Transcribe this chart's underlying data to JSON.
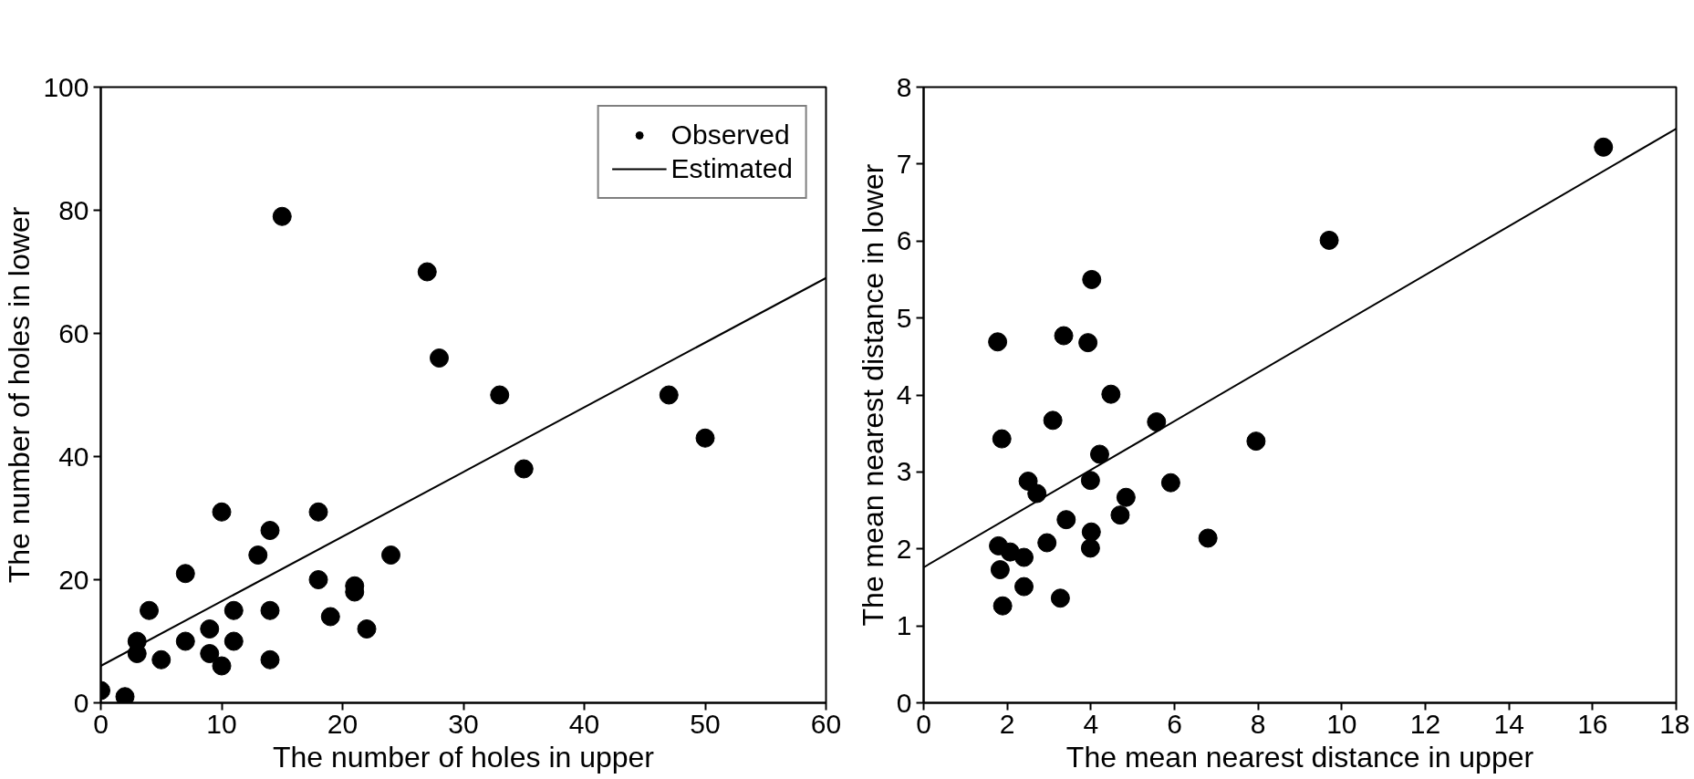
{
  "chart_data": [
    {
      "type": "scatter",
      "xlabel": "The number of holes in upper",
      "ylabel": "The number of holes in lower",
      "xlim": [
        0,
        60
      ],
      "ylim": [
        0,
        100
      ],
      "xticks": [
        0,
        10,
        20,
        30,
        40,
        50,
        60
      ],
      "yticks": [
        0,
        20,
        40,
        60,
        80,
        100
      ],
      "grid": false,
      "legend": "top right",
      "series": [
        {
          "name": "Observed",
          "marker": "circle",
          "color": "#000000",
          "x": [
            0,
            2,
            3,
            3,
            4,
            5,
            7,
            7,
            9,
            9,
            10,
            10,
            11,
            11,
            13,
            14,
            14,
            14,
            15,
            18,
            18,
            19,
            21,
            21,
            22,
            24,
            27,
            28,
            33,
            35,
            47,
            50
          ],
          "values": [
            2,
            1,
            10,
            8,
            15,
            7,
            21,
            10,
            12,
            8,
            6,
            31,
            15,
            10,
            24,
            28,
            15,
            7,
            79,
            31,
            20,
            14,
            19,
            18,
            12,
            24,
            70,
            56,
            50,
            38,
            50,
            43
          ]
        },
        {
          "name": "Estimated",
          "type": "line",
          "line_style": "solid",
          "color": "#000000",
          "x": [
            0,
            60
          ],
          "values": [
            6,
            69
          ]
        }
      ]
    },
    {
      "type": "scatter",
      "xlabel": "The mean nearest distance in upper",
      "ylabel": "The mean nearest distance in lower",
      "xlim": [
        0,
        18
      ],
      "ylim": [
        0,
        8
      ],
      "xticks": [
        0,
        2,
        4,
        6,
        8,
        10,
        12,
        14,
        16,
        18
      ],
      "yticks": [
        0,
        1,
        2,
        3,
        4,
        5,
        6,
        7,
        8
      ],
      "grid": false,
      "series": [
        {
          "marker": "circle",
          "color": "#000000",
          "x": [
            1.77,
            1.87,
            4.02,
            3.35,
            3.93,
            4.48,
            3.09,
            5.57,
            4.21,
            7.95,
            9.7,
            16.26,
            2.5,
            2.71,
            3.99,
            5.91,
            4.84,
            4.7,
            3.41,
            4.01,
            3.99,
            2.95,
            1.79,
            2.07,
            2.4,
            1.83,
            2.4,
            3.27,
            1.89,
            6.8
          ],
          "values": [
            4.69,
            3.43,
            5.5,
            4.77,
            4.68,
            4.01,
            3.67,
            3.65,
            3.23,
            3.4,
            6.01,
            7.22,
            2.88,
            2.72,
            2.89,
            2.86,
            2.67,
            2.44,
            2.38,
            2.22,
            2.01,
            2.08,
            2.04,
            1.96,
            1.89,
            1.73,
            1.51,
            1.36,
            1.26,
            2.14
          ]
        },
        {
          "type": "line",
          "line_style": "solid",
          "color": "#000000",
          "x": [
            0,
            18
          ],
          "values": [
            1.76,
            7.46
          ]
        }
      ]
    }
  ]
}
